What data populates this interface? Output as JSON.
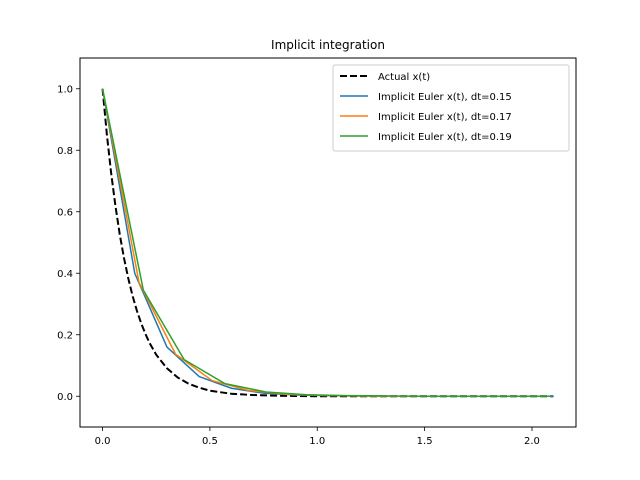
{
  "chart_data": {
    "type": "line",
    "title": "Implicit integration",
    "xlabel": "",
    "ylabel": "",
    "xlim": [
      -0.105,
      2.205
    ],
    "ylim": [
      -0.1,
      1.1
    ],
    "xticks": [
      0.0,
      0.5,
      1.0,
      1.5,
      2.0
    ],
    "xtick_labels": [
      "0.0",
      "0.5",
      "1.0",
      "1.5",
      "2.0"
    ],
    "yticks": [
      0.0,
      0.2,
      0.4,
      0.6,
      0.8,
      1.0
    ],
    "ytick_labels": [
      "0.0",
      "0.2",
      "0.4",
      "0.6",
      "0.8",
      "1.0"
    ],
    "grid": false,
    "legend_position": "top-right",
    "series": [
      {
        "name": "Actual x(t)",
        "color": "#000000",
        "dashed": true,
        "x": [
          0,
          0.02,
          0.04,
          0.06,
          0.08,
          0.1,
          0.12,
          0.14,
          0.16,
          0.18,
          0.2,
          0.22,
          0.25,
          0.3,
          0.35,
          0.4,
          0.45,
          0.5,
          0.6,
          0.7,
          0.8,
          0.9,
          1.0,
          1.2,
          1.4,
          1.6,
          1.8,
          2.0,
          2.1
        ],
        "y": [
          1.0,
          0.852,
          0.726,
          0.619,
          0.527,
          0.449,
          0.383,
          0.326,
          0.278,
          0.237,
          0.202,
          0.172,
          0.135,
          0.091,
          0.061,
          0.041,
          0.028,
          0.018,
          0.008,
          0.004,
          0.002,
          0.001,
          0.0,
          0.0,
          0.0,
          0.0,
          0.0,
          0.0,
          0.0
        ]
      },
      {
        "name": "Implicit Euler x(t), dt=0.15",
        "color": "#1f77b4",
        "dashed": false,
        "x": [
          0,
          0.15,
          0.3,
          0.45,
          0.6,
          0.75,
          0.9,
          1.05,
          1.2,
          1.35,
          1.5,
          1.65,
          1.8,
          1.95,
          2.1
        ],
        "y": [
          1.0,
          0.4,
          0.16,
          0.064,
          0.026,
          0.01,
          0.004,
          0.002,
          0.001,
          0.0,
          0.0,
          0.0,
          0.0,
          0.0,
          0.0
        ]
      },
      {
        "name": "Implicit Euler x(t), dt=0.17",
        "color": "#ff7f0e",
        "dashed": false,
        "x": [
          0,
          0.17,
          0.34,
          0.51,
          0.68,
          0.85,
          1.02,
          1.19,
          1.36,
          1.53,
          1.7,
          1.87,
          2.04
        ],
        "y": [
          1.0,
          0.37,
          0.137,
          0.051,
          0.019,
          0.007,
          0.003,
          0.001,
          0.0,
          0.0,
          0.0,
          0.0,
          0.0
        ]
      },
      {
        "name": "Implicit Euler x(t), dt=0.19",
        "color": "#2ca02c",
        "dashed": false,
        "x": [
          0,
          0.19,
          0.38,
          0.57,
          0.76,
          0.95,
          1.14,
          1.33,
          1.52,
          1.71,
          1.9,
          2.09
        ],
        "y": [
          1.0,
          0.345,
          0.119,
          0.041,
          0.014,
          0.005,
          0.002,
          0.001,
          0.0,
          0.0,
          0.0,
          0.0
        ]
      }
    ]
  }
}
